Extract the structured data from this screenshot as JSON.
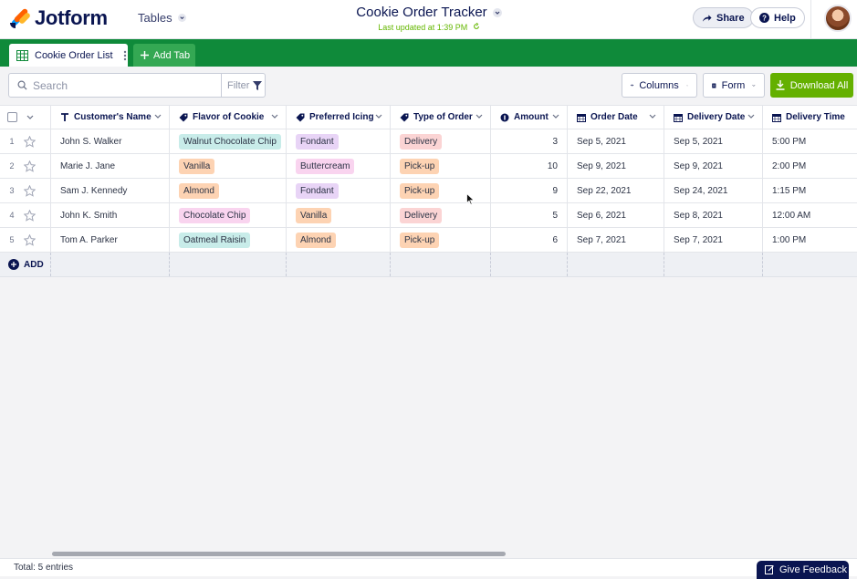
{
  "app": {
    "logo_text": "Jotform",
    "tables_label": "Tables",
    "doc_title": "Cookie Order Tracker",
    "last_updated": "Last updated at 1:39 PM",
    "share_label": "Share",
    "help_label": "Help"
  },
  "tabs": {
    "active_label": "Cookie Order List",
    "add_label": "Add Tab"
  },
  "toolbar": {
    "search_placeholder": "Search",
    "filter_label": "Filter",
    "columns_label": "Columns",
    "form_label": "Form",
    "download_label": "Download All"
  },
  "columns": [
    {
      "label": "Customer's Name",
      "icon": "text-icon"
    },
    {
      "label": "Flavor of Cookie",
      "icon": "tag-icon"
    },
    {
      "label": "Preferred Icing",
      "icon": "tag-icon"
    },
    {
      "label": "Type of Order",
      "icon": "tag-icon"
    },
    {
      "label": "Amount",
      "icon": "number-icon"
    },
    {
      "label": "Order Date",
      "icon": "calendar-icon"
    },
    {
      "label": "Delivery Date",
      "icon": "calendar-icon"
    },
    {
      "label": "Delivery Time",
      "icon": "calendar-icon"
    }
  ],
  "rows": [
    {
      "n": "1",
      "name": "John S. Walker",
      "flavor": "Walnut Chocolate Chip",
      "icing": "Fondant",
      "type": "Delivery",
      "amount": "3",
      "order_date": "Sep 5, 2021",
      "delivery_date": "Sep 5, 2021",
      "delivery_time": "5:00 PM"
    },
    {
      "n": "2",
      "name": "Marie J. Jane",
      "flavor": "Vanilla",
      "icing": "Buttercream",
      "type": "Pick-up",
      "amount": "10",
      "order_date": "Sep 9, 2021",
      "delivery_date": "Sep 9, 2021",
      "delivery_time": "2:00 PM"
    },
    {
      "n": "3",
      "name": "Sam J. Kennedy",
      "flavor": "Almond",
      "icing": "Fondant",
      "type": "Pick-up",
      "amount": "9",
      "order_date": "Sep 22, 2021",
      "delivery_date": "Sep 24, 2021",
      "delivery_time": "1:15 PM"
    },
    {
      "n": "4",
      "name": "John K. Smith",
      "flavor": "Chocolate Chip",
      "icing": "Vanilla",
      "type": "Delivery",
      "amount": "5",
      "order_date": "Sep 6, 2021",
      "delivery_date": "Sep 8, 2021",
      "delivery_time": "12:00 AM"
    },
    {
      "n": "5",
      "name": "Tom A. Parker",
      "flavor": "Oatmeal Raisin",
      "icing": "Almond",
      "type": "Pick-up",
      "amount": "6",
      "order_date": "Sep 7, 2021",
      "delivery_date": "Sep 7, 2021",
      "delivery_time": "1:00 PM"
    }
  ],
  "tag_colors": {
    "Walnut Chocolate Chip": "#c8ece9",
    "Vanilla": "#fdd3b3",
    "Almond": "#fdd3b3",
    "Chocolate Chip": "#f9d4ef",
    "Oatmeal Raisin": "#c8ece9",
    "Fondant": "#e8d4f6",
    "Buttercream": "#f9d4ef",
    "Delivery": "#fbd4d4",
    "Pick-up": "#fdd3b3"
  },
  "add_row_label": "ADD",
  "footer": {
    "total": "Total: 5 entries",
    "feedback": "Give Feedback"
  },
  "colors": {
    "brand_green": "#0f8a3a",
    "download_green": "#64b000",
    "navy": "#0a1551"
  }
}
